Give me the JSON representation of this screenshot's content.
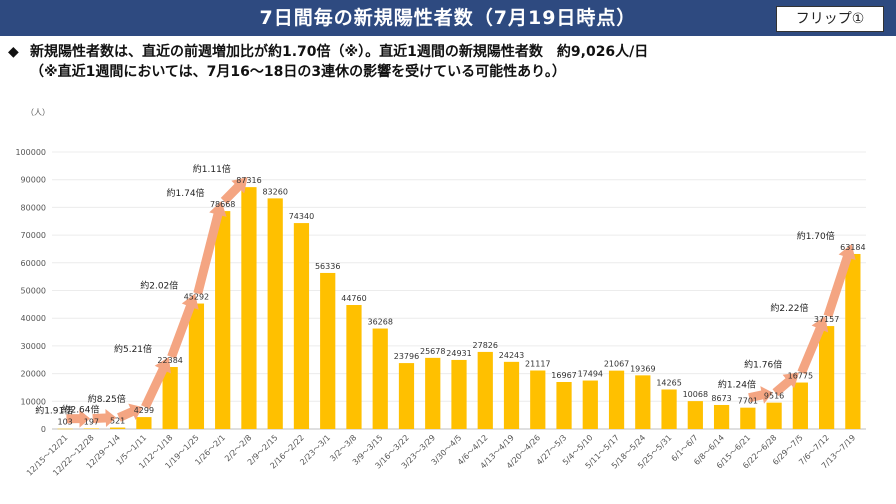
{
  "header": {
    "title": "7日間毎の新規陽性者数（7月19日時点）",
    "flip_label": "フリップ①"
  },
  "summary": {
    "bullet": "◆",
    "line1": "新規陽性者数は、直近の前週増加比が約1.70倍（※）。直近1週間の新規陽性者数　約9,026人/日",
    "line2": "（※直近1週間においては、7月16～18日の3連休の影響を受けている可能性あり。）"
  },
  "chart_data": {
    "type": "bar",
    "ylabel": "（人）",
    "ylim": [
      0,
      100000
    ],
    "yticks": [
      0,
      10000,
      20000,
      30000,
      40000,
      50000,
      60000,
      70000,
      80000,
      90000,
      100000
    ],
    "bar_color": "#ffc000",
    "arrow_color": "#f4a582",
    "categories": [
      "12/15～12/21",
      "12/22～12/28",
      "12/29～1/4",
      "1/5～1/11",
      "1/12～1/18",
      "1/19～1/25",
      "1/26～2/1",
      "2/2～2/8",
      "2/9～2/15",
      "2/16～2/22",
      "2/23～3/1",
      "3/2～3/8",
      "3/9～3/15",
      "3/16～3/22",
      "3/23～3/29",
      "3/30～4/5",
      "4/6～4/12",
      "4/13～4/19",
      "4/20～4/26",
      "4/27～5/3",
      "5/4～5/10",
      "5/11～5/17",
      "5/18～5/24",
      "5/25～5/31",
      "6/1～6/7",
      "6/8～6/14",
      "6/15～6/21",
      "6/22～6/28",
      "6/29～7/5",
      "7/6～7/12",
      "7/13～7/19"
    ],
    "values": [
      103,
      197,
      521,
      4299,
      22384,
      45292,
      78668,
      87316,
      83260,
      74340,
      56336,
      44760,
      36268,
      23796,
      25678,
      24931,
      27826,
      24243,
      21117,
      16967,
      17494,
      21067,
      19369,
      14265,
      10068,
      8673,
      7701,
      9516,
      16775,
      37157,
      63184
    ],
    "annotations": [
      {
        "label": "約1.91倍",
        "from": 0,
        "to": 1
      },
      {
        "label": "約2.64倍",
        "from": 1,
        "to": 2
      },
      {
        "label": "約8.25倍",
        "from": 2,
        "to": 3
      },
      {
        "label": "約5.21倍",
        "from": 3,
        "to": 4
      },
      {
        "label": "約2.02倍",
        "from": 4,
        "to": 5
      },
      {
        "label": "約1.74倍",
        "from": 5,
        "to": 6
      },
      {
        "label": "約1.11倍",
        "from": 6,
        "to": 7
      },
      {
        "label": "約1.24倍",
        "from": 26,
        "to": 27
      },
      {
        "label": "約1.76倍",
        "from": 27,
        "to": 28
      },
      {
        "label": "約2.22倍",
        "from": 28,
        "to": 29
      },
      {
        "label": "約1.70倍",
        "from": 29,
        "to": 30
      }
    ]
  }
}
